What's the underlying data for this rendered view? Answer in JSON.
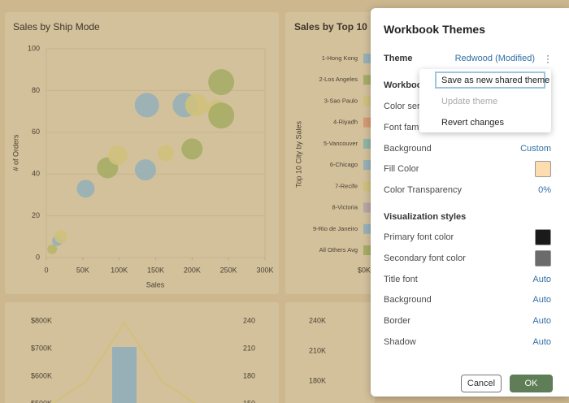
{
  "scatter": {
    "title": "Sales by Ship Mode",
    "y_label": "# of Orders",
    "x_label": "Sales",
    "xlim": [
      0,
      300000
    ],
    "ylim": [
      0,
      100
    ],
    "xticks": [
      0,
      {
        "value": 50000,
        "label": "50K"
      },
      {
        "value": 100000,
        "label": "100K"
      },
      {
        "value": 150000,
        "label": "150K"
      },
      {
        "value": 200000,
        "label": "200K"
      },
      {
        "value": 250000,
        "label": "250K"
      },
      {
        "value": 300000,
        "label": "300K"
      }
    ],
    "yticks": [
      0,
      20,
      40,
      60,
      80,
      100
    ],
    "points": {
      "x": [
        8000,
        15000,
        20000,
        54000,
        84000,
        98000,
        136000,
        138000,
        164000,
        190000,
        200000,
        206000,
        234000,
        240000,
        240000
      ],
      "y": [
        4,
        8,
        10,
        33,
        43,
        49,
        42,
        73,
        50,
        73,
        52,
        73,
        71,
        84,
        68
      ],
      "size": [
        36,
        40,
        64,
        121,
        169,
        144,
        169,
        225,
        100,
        225,
        169,
        196,
        144,
        256,
        256
      ],
      "color": [
        "#b9b66a",
        "#97b0b8",
        "#cfc17c",
        "#97b0b8",
        "#a6ad66",
        "#cfc17c",
        "#97b0b8",
        "#97b0b8",
        "#cfc17c",
        "#97b0b8",
        "#a6ad66",
        "#cfc17c",
        "#cfc17c",
        "#a6ad66",
        "#a6ad66"
      ]
    }
  },
  "bar_panel": {
    "title": "Sales by Top 10",
    "y_label": "Top 10 City by Sales",
    "categories": [
      "1-Hong Kong",
      "2-Los Angeles",
      "3-Sao Paulo",
      "4-Riyadh",
      "5-Vancouver",
      "6-Chicago",
      "7-Recife",
      "8-Victoria",
      "9-Rio de Janeiro",
      "All Others Avg"
    ],
    "colors": [
      "#97b0b8",
      "#a6ad66",
      "#cfc17c",
      "#d49a72",
      "#8fb5a6",
      "#97b0b8",
      "#cfc17c",
      "#b6a6a6",
      "#97b0b8",
      "#a6ad66"
    ],
    "x_tick": "$0K"
  },
  "combo_panel": {
    "left_ticks": [
      "$800K",
      "$700K",
      "$600K",
      "$500K"
    ],
    "right_ticks": [
      240,
      210,
      180,
      150
    ]
  },
  "area_panel": {
    "ticks": [
      "240K",
      "210K",
      "180K"
    ]
  },
  "dialog": {
    "title": "Workbook Themes",
    "theme": {
      "label": "Theme",
      "value": "Redwood (Modified)"
    },
    "menu": [
      "Save as new shared theme",
      "Update theme",
      "Revert changes"
    ],
    "workbook_section": {
      "title": "Workbook styles",
      "rows": [
        {
          "label": "Color series"
        },
        {
          "label": "Font family"
        },
        {
          "label": "Background",
          "value": "Custom"
        },
        {
          "label": "Fill Color",
          "swatch": "#fddcb0"
        },
        {
          "label": "Color Transparency",
          "value": "0%"
        }
      ]
    },
    "viz_section": {
      "title": "Visualization styles",
      "rows": [
        {
          "label": "Primary font color",
          "swatch": "#1a1a1a"
        },
        {
          "label": "Secondary font color",
          "swatch": "#6b6b6b"
        },
        {
          "label": "Title font",
          "value": "Auto"
        },
        {
          "label": "Background",
          "value": "Auto"
        },
        {
          "label": "Border",
          "value": "Auto"
        },
        {
          "label": "Shadow",
          "value": "Auto"
        }
      ]
    },
    "buttons": [
      "Cancel",
      "OK"
    ]
  }
}
